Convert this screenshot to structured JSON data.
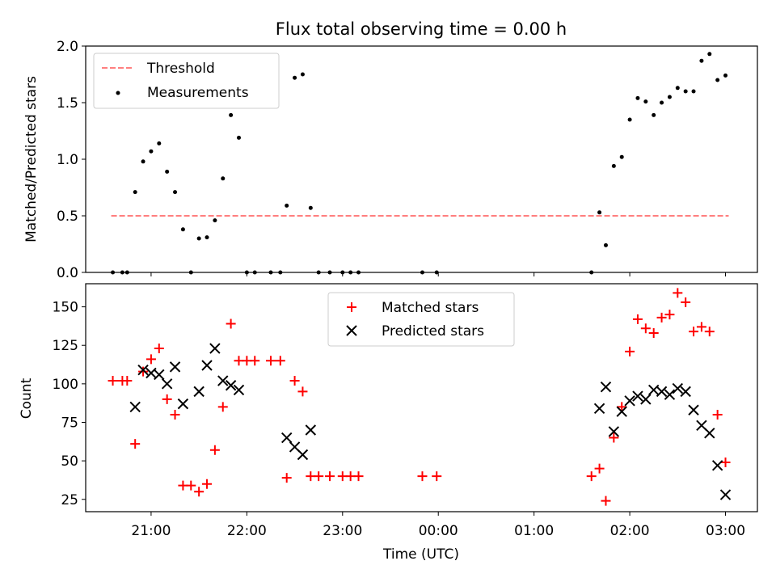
{
  "figure_title": "Flux total observing time = 0.00 h",
  "chart_data": [
    {
      "type": "scatter",
      "title": "Flux total observing time = 0.00 h",
      "xlabel": "",
      "ylabel": "Matched/Predicted stars",
      "x_axis": "time",
      "xlim": [
        "20:19",
        "03:20"
      ],
      "ylim": [
        0,
        2.0
      ],
      "yticks": [
        0.0,
        0.5,
        1.0,
        1.5,
        2.0
      ],
      "ytick_labels": [
        "0.0",
        "0.5",
        "1.0",
        "1.5",
        "2.0"
      ],
      "legend_position": "top-left",
      "series": [
        {
          "name": "Threshold",
          "kind": "line",
          "style": "dashed",
          "color": "#ff7f7f",
          "points": [
            [
              "20:35",
              0.5
            ],
            [
              "03:02",
              0.5
            ]
          ]
        },
        {
          "name": "Measurements",
          "kind": "scatter",
          "marker": "dot",
          "color": "#000000",
          "points": [
            [
              "20:36",
              0.0
            ],
            [
              "20:42",
              0.0
            ],
            [
              "20:45",
              0.0
            ],
            [
              "20:50",
              0.71
            ],
            [
              "20:55",
              0.98
            ],
            [
              "21:00",
              1.07
            ],
            [
              "21:05",
              1.14
            ],
            [
              "21:10",
              0.89
            ],
            [
              "21:15",
              0.71
            ],
            [
              "21:20",
              0.38
            ],
            [
              "21:25",
              0.0
            ],
            [
              "21:30",
              0.3
            ],
            [
              "21:35",
              0.31
            ],
            [
              "21:40",
              0.46
            ],
            [
              "21:45",
              0.83
            ],
            [
              "21:50",
              1.39
            ],
            [
              "21:55",
              1.19
            ],
            [
              "22:00",
              0.0
            ],
            [
              "22:05",
              0.0
            ],
            [
              "22:15",
              0.0
            ],
            [
              "22:21",
              0.0
            ],
            [
              "22:25",
              0.59
            ],
            [
              "22:30",
              1.72
            ],
            [
              "22:35",
              1.75
            ],
            [
              "22:40",
              0.57
            ],
            [
              "22:45",
              0.0
            ],
            [
              "22:52",
              0.0
            ],
            [
              "23:00",
              0.0
            ],
            [
              "23:05",
              0.0
            ],
            [
              "23:10",
              0.0
            ],
            [
              "23:50",
              0.0
            ],
            [
              "23:59",
              0.0
            ],
            [
              "01:36",
              0.0
            ],
            [
              "01:41",
              0.53
            ],
            [
              "01:45",
              0.24
            ],
            [
              "01:50",
              0.94
            ],
            [
              "01:55",
              1.02
            ],
            [
              "02:00",
              1.35
            ],
            [
              "02:05",
              1.54
            ],
            [
              "02:10",
              1.51
            ],
            [
              "02:15",
              1.39
            ],
            [
              "02:20",
              1.5
            ],
            [
              "02:25",
              1.55
            ],
            [
              "02:30",
              1.63
            ],
            [
              "02:35",
              1.6
            ],
            [
              "02:40",
              1.6
            ],
            [
              "02:45",
              1.87
            ],
            [
              "02:50",
              1.93
            ],
            [
              "02:55",
              1.7
            ],
            [
              "03:00",
              1.74
            ]
          ]
        }
      ]
    },
    {
      "type": "scatter",
      "title": "",
      "xlabel": "Time (UTC)",
      "ylabel": "Count",
      "x_axis": "time",
      "xlim": [
        "20:19",
        "03:20"
      ],
      "ylim": [
        17,
        165
      ],
      "xticks": [
        "21:00",
        "22:00",
        "23:00",
        "00:00",
        "01:00",
        "02:00",
        "03:00"
      ],
      "yticks": [
        25,
        50,
        75,
        100,
        125,
        150
      ],
      "legend_position": "top-center",
      "series": [
        {
          "name": "Matched stars",
          "kind": "scatter",
          "marker": "plus",
          "color": "#ff0000",
          "points": [
            [
              "20:36",
              102
            ],
            [
              "20:42",
              102
            ],
            [
              "20:45",
              102
            ],
            [
              "20:50",
              61
            ],
            [
              "20:55",
              108
            ],
            [
              "21:00",
              116
            ],
            [
              "21:05",
              123
            ],
            [
              "21:10",
              90
            ],
            [
              "21:15",
              80
            ],
            [
              "21:20",
              34
            ],
            [
              "21:25",
              34
            ],
            [
              "21:30",
              30
            ],
            [
              "21:35",
              35
            ],
            [
              "21:40",
              57
            ],
            [
              "21:45",
              85
            ],
            [
              "21:50",
              139
            ],
            [
              "21:55",
              115
            ],
            [
              "22:00",
              115
            ],
            [
              "22:05",
              115
            ],
            [
              "22:15",
              115
            ],
            [
              "22:21",
              115
            ],
            [
              "22:25",
              39
            ],
            [
              "22:30",
              102
            ],
            [
              "22:35",
              95
            ],
            [
              "22:40",
              40
            ],
            [
              "22:45",
              40
            ],
            [
              "22:52",
              40
            ],
            [
              "23:00",
              40
            ],
            [
              "23:05",
              40
            ],
            [
              "23:10",
              40
            ],
            [
              "23:50",
              40
            ],
            [
              "23:59",
              40
            ],
            [
              "01:36",
              40
            ],
            [
              "01:41",
              45
            ],
            [
              "01:45",
              24
            ],
            [
              "01:50",
              65
            ],
            [
              "01:55",
              85
            ],
            [
              "02:00",
              121
            ],
            [
              "02:05",
              142
            ],
            [
              "02:10",
              136
            ],
            [
              "02:15",
              133
            ],
            [
              "02:20",
              143
            ],
            [
              "02:25",
              145
            ],
            [
              "02:30",
              159
            ],
            [
              "02:35",
              153
            ],
            [
              "02:40",
              134
            ],
            [
              "02:45",
              137
            ],
            [
              "02:50",
              134
            ],
            [
              "02:55",
              80
            ],
            [
              "03:00",
              49
            ]
          ]
        },
        {
          "name": "Predicted stars",
          "kind": "scatter",
          "marker": "cross",
          "color": "#000000",
          "points": [
            [
              "20:50",
              85
            ],
            [
              "20:55",
              109
            ],
            [
              "21:00",
              107
            ],
            [
              "21:05",
              106
            ],
            [
              "21:10",
              100
            ],
            [
              "21:15",
              111
            ],
            [
              "21:20",
              87
            ],
            [
              "21:30",
              95
            ],
            [
              "21:35",
              112
            ],
            [
              "21:40",
              123
            ],
            [
              "21:45",
              102
            ],
            [
              "21:50",
              99
            ],
            [
              "21:55",
              96
            ],
            [
              "22:25",
              65
            ],
            [
              "22:30",
              59
            ],
            [
              "22:35",
              54
            ],
            [
              "22:40",
              70
            ],
            [
              "01:41",
              84
            ],
            [
              "01:45",
              98
            ],
            [
              "01:50",
              69
            ],
            [
              "01:55",
              82
            ],
            [
              "02:00",
              89
            ],
            [
              "02:05",
              92
            ],
            [
              "02:10",
              90
            ],
            [
              "02:15",
              96
            ],
            [
              "02:20",
              95
            ],
            [
              "02:25",
              93
            ],
            [
              "02:30",
              97
            ],
            [
              "02:35",
              95
            ],
            [
              "02:40",
              83
            ],
            [
              "02:45",
              73
            ],
            [
              "02:50",
              68
            ],
            [
              "02:55",
              47
            ],
            [
              "03:00",
              28
            ]
          ]
        }
      ]
    }
  ]
}
